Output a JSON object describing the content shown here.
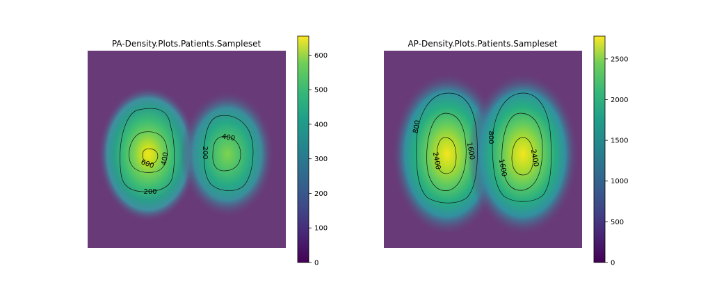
{
  "chart_data": [
    {
      "type": "heatmap",
      "title": "PA-Density.Plots.Patients.Sampleset",
      "colormap": "viridis",
      "vmin": 0,
      "vmax": 655,
      "colorbar_ticks": [
        "0",
        "100",
        "200",
        "300",
        "400",
        "500",
        "600"
      ],
      "contour_levels": [
        200,
        400,
        600
      ],
      "contour_labels": [
        "200",
        "200",
        "400",
        "400",
        "600"
      ],
      "axes_visible": false
    },
    {
      "type": "heatmap",
      "title": "AP-Density.Plots.Patients.Sampleset",
      "colormap": "viridis",
      "vmin": 0,
      "vmax": 2780,
      "colorbar_ticks": [
        "0",
        "500",
        "1000",
        "1500",
        "2000",
        "2500"
      ],
      "contour_levels": [
        800,
        1600,
        2400
      ],
      "contour_labels": [
        "800",
        "800",
        "1600",
        "1600",
        "2400",
        "2400"
      ],
      "axes_visible": false
    }
  ]
}
